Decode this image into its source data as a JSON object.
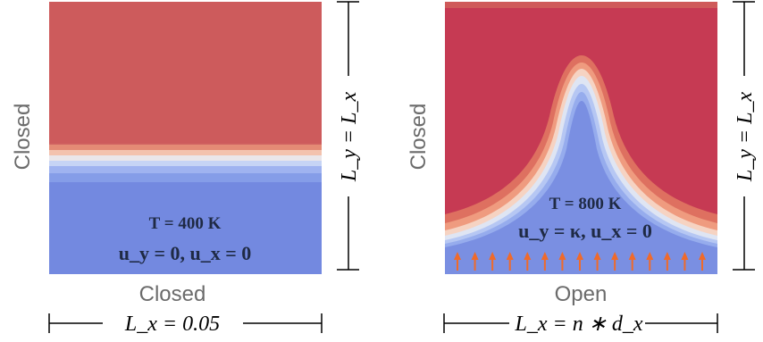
{
  "panels": [
    {
      "left_label": "Closed",
      "bottom_label": "Closed",
      "condition_T": "T = 400 K",
      "condition_u": "u_y = 0, u_x = 0",
      "width_label": "L_x = 0.05",
      "height_label": "L_y = L_x"
    },
    {
      "left_label": "Closed",
      "bottom_label": "Open",
      "condition_T": "T = 800 K",
      "condition_u": "u_y = κ, u_x = 0",
      "width_label": "L_x = n ∗ d_x",
      "height_label": "L_y = L_x",
      "inflow_arrow_count": 15
    }
  ],
  "colors": {
    "hot_left": "#cd5b5c",
    "hot_right": "#c63a53",
    "cold": "#7389e0",
    "arrow": "#f06a2a",
    "side_label": "#6b6b6b"
  }
}
